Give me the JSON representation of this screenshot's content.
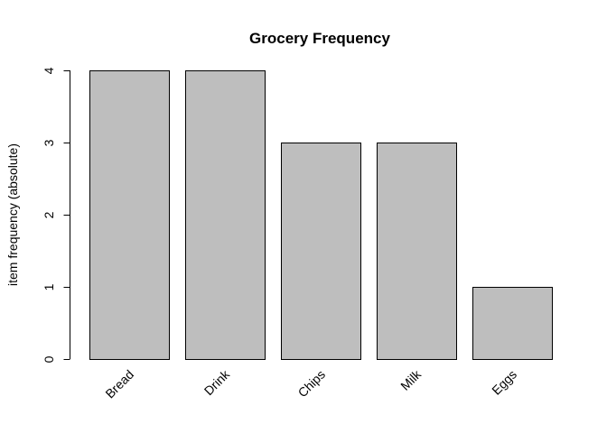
{
  "chart_data": {
    "type": "bar",
    "title": "Grocery Frequency",
    "xlabel": "",
    "ylabel": "item frequency (absolute)",
    "categories": [
      "Bread",
      "Drink",
      "Chips",
      "Milk",
      "Eggs"
    ],
    "values": [
      4,
      4,
      3,
      3,
      1
    ],
    "ylim": [
      0,
      4
    ],
    "yticks": [
      "0",
      "1",
      "2",
      "3",
      "4"
    ],
    "bar_color": "#bebebe",
    "grid": false
  }
}
